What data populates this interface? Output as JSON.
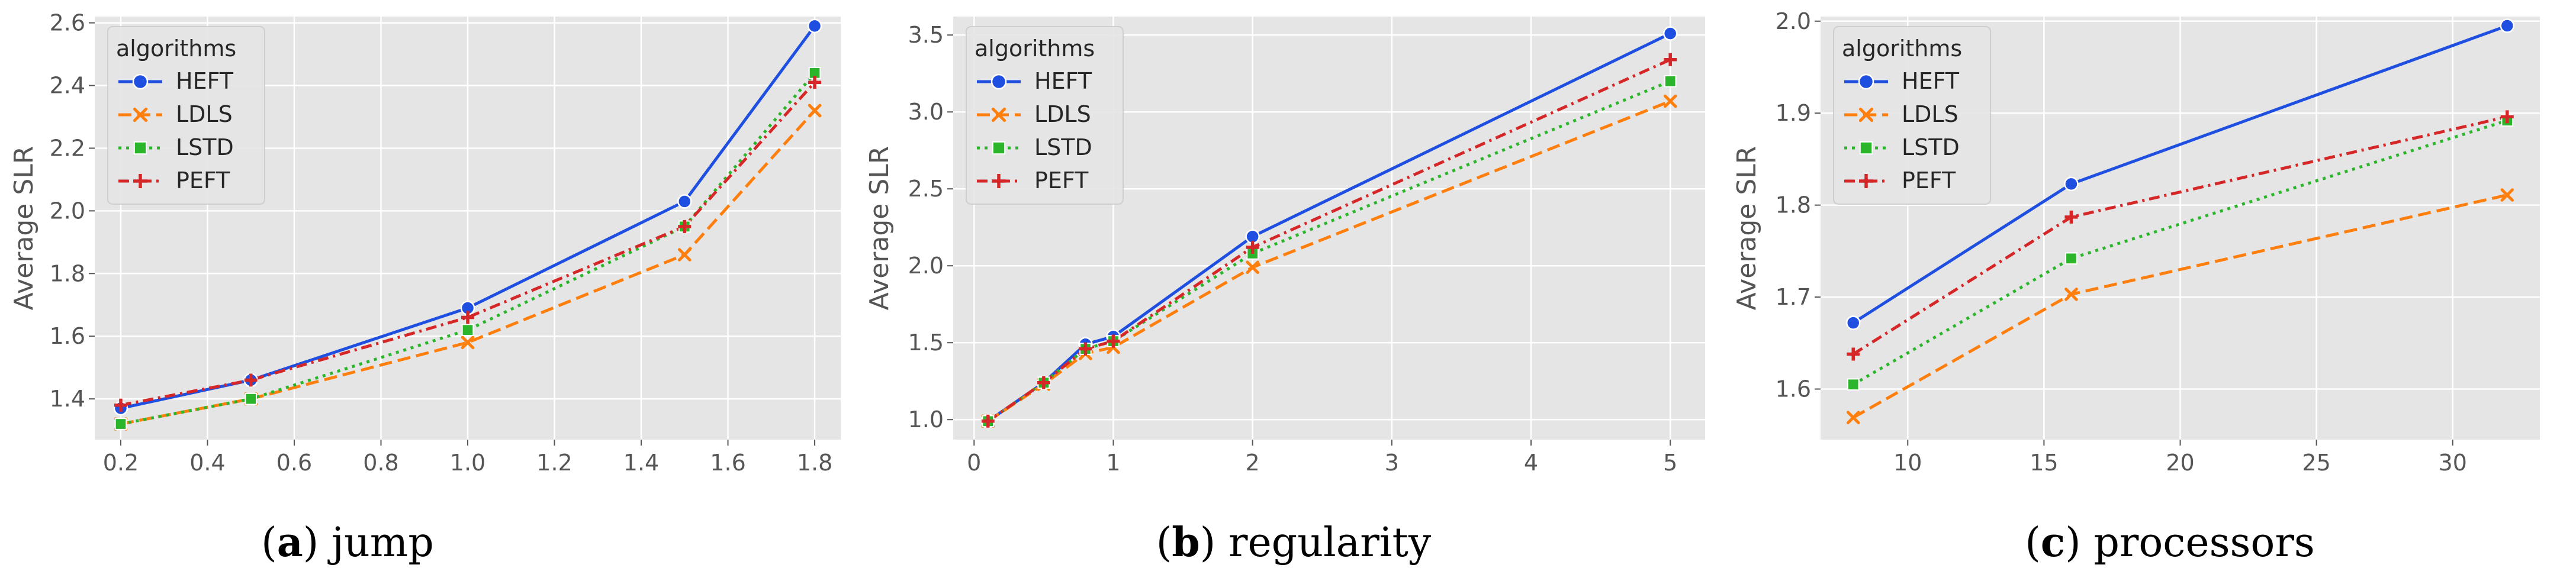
{
  "chart_data": [
    {
      "type": "line",
      "caption_letter": "a",
      "caption_text": "jump",
      "ylabel": "Average SLR",
      "xlabel": "",
      "legend_title": "algorithms",
      "legend_position": "top-left",
      "grid": true,
      "xlim": [
        0.14,
        1.86
      ],
      "ylim": [
        1.27,
        2.62
      ],
      "xticks": [
        0.2,
        0.4,
        0.6,
        0.8,
        1.0,
        1.2,
        1.4,
        1.6,
        1.8
      ],
      "xtick_labels": [
        "0.2",
        "0.4",
        "0.6",
        "0.8",
        "1.0",
        "1.2",
        "1.4",
        "1.6",
        "1.8"
      ],
      "yticks": [
        1.4,
        1.6,
        1.8,
        2.0,
        2.2,
        2.4,
        2.6
      ],
      "ytick_labels": [
        "1.4",
        "1.6",
        "1.8",
        "2.0",
        "2.2",
        "2.4",
        "2.6"
      ],
      "x": [
        0.2,
        0.5,
        1.0,
        1.5,
        1.8
      ],
      "series": [
        {
          "name": "HEFT",
          "values": [
            1.37,
            1.46,
            1.69,
            2.03,
            2.59
          ]
        },
        {
          "name": "LDLS",
          "values": [
            1.32,
            1.4,
            1.58,
            1.86,
            2.32
          ]
        },
        {
          "name": "LSTD",
          "values": [
            1.32,
            1.4,
            1.62,
            1.95,
            2.44
          ]
        },
        {
          "name": "PEFT",
          "values": [
            1.38,
            1.46,
            1.66,
            1.95,
            2.41
          ]
        }
      ]
    },
    {
      "type": "line",
      "caption_letter": "b",
      "caption_text": "regularity",
      "ylabel": "Average SLR",
      "xlabel": "",
      "legend_title": "algorithms",
      "legend_position": "top-left",
      "grid": true,
      "xlim": [
        -0.15,
        5.25
      ],
      "ylim": [
        0.87,
        3.62
      ],
      "xticks": [
        0,
        1,
        2,
        3,
        4,
        5
      ],
      "xtick_labels": [
        "0",
        "1",
        "2",
        "3",
        "4",
        "5"
      ],
      "yticks": [
        1.0,
        1.5,
        2.0,
        2.5,
        3.0,
        3.5
      ],
      "ytick_labels": [
        "1.0",
        "1.5",
        "2.0",
        "2.5",
        "3.0",
        "3.5"
      ],
      "x": [
        0.1,
        0.5,
        0.8,
        1.0,
        2.0,
        5.0
      ],
      "series": [
        {
          "name": "HEFT",
          "values": [
            0.99,
            1.24,
            1.49,
            1.54,
            2.19,
            3.51
          ]
        },
        {
          "name": "LDLS",
          "values": [
            0.99,
            1.23,
            1.43,
            1.47,
            1.99,
            3.07
          ]
        },
        {
          "name": "LSTD",
          "values": [
            0.99,
            1.24,
            1.46,
            1.51,
            2.08,
            3.2
          ]
        },
        {
          "name": "PEFT",
          "values": [
            0.99,
            1.24,
            1.46,
            1.51,
            2.12,
            3.34
          ]
        }
      ]
    },
    {
      "type": "line",
      "caption_letter": "c",
      "caption_text": "processors",
      "ylabel": "Average SLR",
      "xlabel": "",
      "legend_title": "algorithms",
      "legend_position": "top-left",
      "grid": true,
      "xlim": [
        6.8,
        33.2
      ],
      "ylim": [
        1.545,
        2.005
      ],
      "xticks": [
        10,
        15,
        20,
        25,
        30
      ],
      "xtick_labels": [
        "10",
        "15",
        "20",
        "25",
        "30"
      ],
      "yticks": [
        1.6,
        1.7,
        1.8,
        1.9,
        2.0
      ],
      "ytick_labels": [
        "1.6",
        "1.7",
        "1.8",
        "1.9",
        "2.0"
      ],
      "x": [
        8,
        16,
        32
      ],
      "series": [
        {
          "name": "HEFT",
          "values": [
            1.672,
            1.823,
            1.995
          ]
        },
        {
          "name": "LDLS",
          "values": [
            1.569,
            1.703,
            1.811
          ]
        },
        {
          "name": "LSTD",
          "values": [
            1.605,
            1.742,
            1.892
          ]
        },
        {
          "name": "PEFT",
          "values": [
            1.638,
            1.787,
            1.896
          ]
        }
      ]
    }
  ],
  "style": {
    "panel_bg": "#e5e5e5",
    "grid_color": "#ffffff",
    "legend_bg": "#e5e5e5",
    "series_colors": {
      "HEFT": "#1f4fe0",
      "LDLS": "#ff7f0e",
      "LSTD": "#2ab52a",
      "PEFT": "#d62728"
    },
    "series_dash": {
      "HEFT": "solid",
      "LDLS": "dashed",
      "LSTD": "dotted",
      "PEFT": "dashdot"
    },
    "series_marker": {
      "HEFT": "circle",
      "LDLS": "x",
      "LSTD": "square",
      "PEFT": "plus"
    }
  }
}
